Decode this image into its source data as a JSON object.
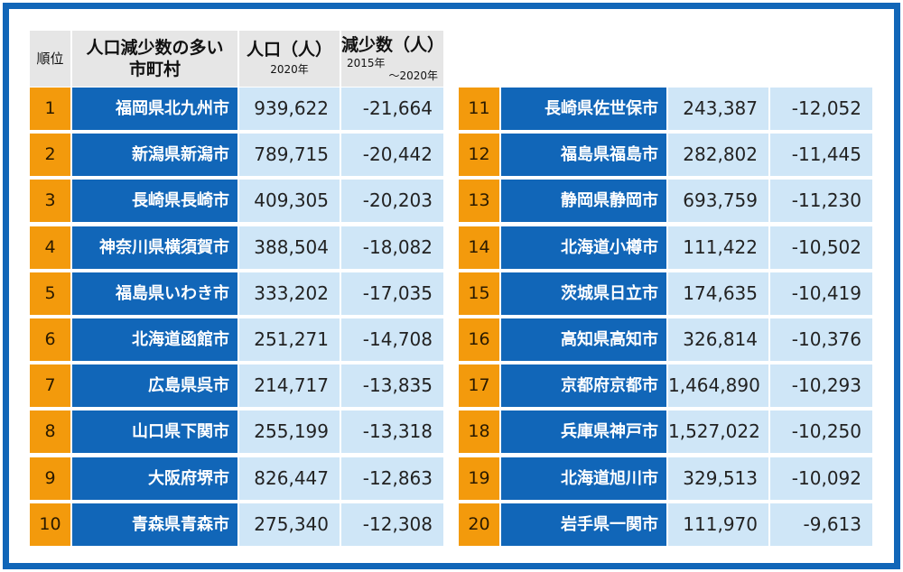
{
  "header": {
    "rank": "順位",
    "city_line1": "人口減少数の多い",
    "city_line2": "市町村",
    "pop": "人口（人）",
    "pop_year": "2020年",
    "dec": "減少数（人）",
    "dec_period_1": "2015年",
    "dec_period_2": "～2020年"
  },
  "chart_data": {
    "type": "table",
    "columns": [
      "順位",
      "人口減少数の多い市町村",
      "人口（人）2020年",
      "減少数（人）2015年～2020年"
    ],
    "rows": [
      {
        "rank": "1",
        "city": "福岡県北九州市",
        "population": "939,622",
        "decrease": "-21,664"
      },
      {
        "rank": "2",
        "city": "新潟県新潟市",
        "population": "789,715",
        "decrease": "-20,442"
      },
      {
        "rank": "3",
        "city": "長崎県長崎市",
        "population": "409,305",
        "decrease": "-20,203"
      },
      {
        "rank": "4",
        "city": "神奈川県横須賀市",
        "population": "388,504",
        "decrease": "-18,082"
      },
      {
        "rank": "5",
        "city": "福島県いわき市",
        "population": "333,202",
        "decrease": "-17,035"
      },
      {
        "rank": "6",
        "city": "北海道函館市",
        "population": "251,271",
        "decrease": "-14,708"
      },
      {
        "rank": "7",
        "city": "広島県呉市",
        "population": "214,717",
        "decrease": "-13,835"
      },
      {
        "rank": "8",
        "city": "山口県下関市",
        "population": "255,199",
        "decrease": "-13,318"
      },
      {
        "rank": "9",
        "city": "大阪府堺市",
        "population": "826,447",
        "decrease": "-12,863"
      },
      {
        "rank": "10",
        "city": "青森県青森市",
        "population": "275,340",
        "decrease": "-12,308"
      },
      {
        "rank": "11",
        "city": "長崎県佐世保市",
        "population": "243,387",
        "decrease": "-12,052"
      },
      {
        "rank": "12",
        "city": "福島県福島市",
        "population": "282,802",
        "decrease": "-11,445"
      },
      {
        "rank": "13",
        "city": "静岡県静岡市",
        "population": "693,759",
        "decrease": "-11,230"
      },
      {
        "rank": "14",
        "city": "北海道小樽市",
        "population": "111,422",
        "decrease": "-10,502"
      },
      {
        "rank": "15",
        "city": "茨城県日立市",
        "population": "174,635",
        "decrease": "-10,419"
      },
      {
        "rank": "16",
        "city": "高知県高知市",
        "population": "326,814",
        "decrease": "-10,376"
      },
      {
        "rank": "17",
        "city": "京都府京都市",
        "population": "1,464,890",
        "decrease": "-10,293"
      },
      {
        "rank": "18",
        "city": "兵庫県神戸市",
        "population": "1,527,022",
        "decrease": "-10,250"
      },
      {
        "rank": "19",
        "city": "北海道旭川市",
        "population": "329,513",
        "decrease": "-10,092"
      },
      {
        "rank": "20",
        "city": "岩手県一関市",
        "population": "111,970",
        "decrease": "-9,613"
      }
    ]
  },
  "colors": {
    "frame": "#1166b8",
    "header_bg": "#e6e6e6",
    "rank_bg": "#f39a0c",
    "city_bg": "#1166b8",
    "value_bg": "#cfe6f7"
  }
}
